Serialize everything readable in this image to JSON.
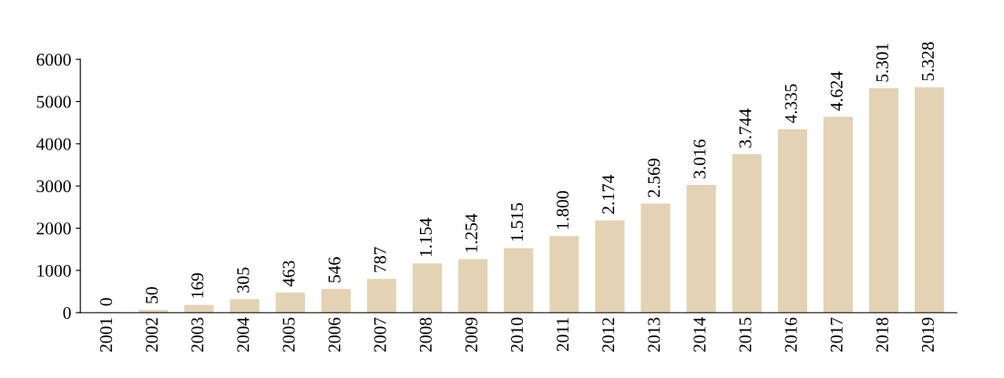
{
  "chart_data": {
    "type": "bar",
    "categories": [
      "2001",
      "2002",
      "2003",
      "2004",
      "2005",
      "2006",
      "2007",
      "2008",
      "2009",
      "2010",
      "2011",
      "2012",
      "2013",
      "2014",
      "2015",
      "2016",
      "2017",
      "2018",
      "2019"
    ],
    "values": [
      0,
      50,
      169,
      305,
      463,
      546,
      787,
      1154,
      1254,
      1515,
      1800,
      2174,
      2569,
      3016,
      3744,
      4335,
      4624,
      5301,
      5328
    ],
    "value_labels": [
      "0",
      "50",
      "169",
      "305",
      "463",
      "546",
      "787",
      "1.154",
      "1.254",
      "1.515",
      "1.800",
      "2.174",
      "2.569",
      "3.016",
      "3.744",
      "4.335",
      "4.624",
      "5.301",
      "5.328"
    ],
    "color": "#e3d2b4",
    "ylim": [
      0,
      6000
    ],
    "yticks": [
      0,
      1000,
      2000,
      3000,
      4000,
      5000,
      6000
    ],
    "grid": false,
    "legend": false
  }
}
